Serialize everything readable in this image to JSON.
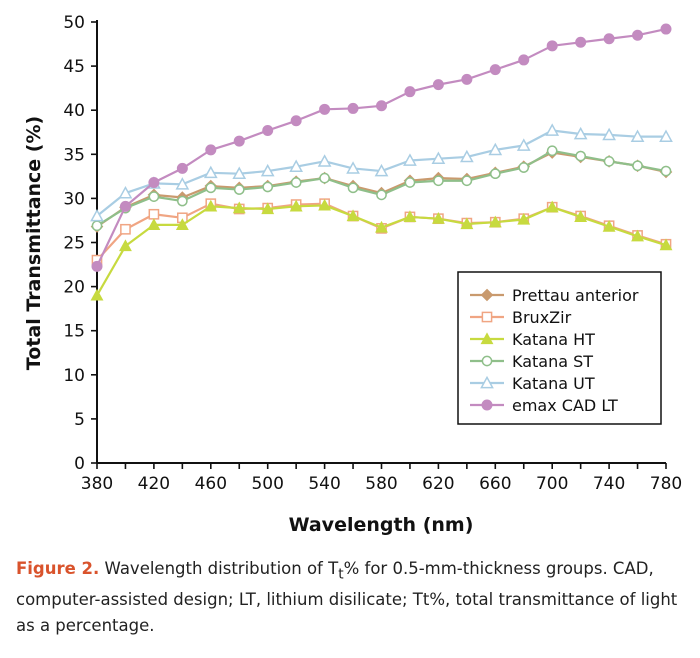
{
  "chart_data": {
    "type": "line",
    "title": "",
    "xlabel": "Wavelength (nm)",
    "ylabel": "Total Transmittance (%)",
    "xlim": [
      380,
      780
    ],
    "ylim": [
      0,
      50
    ],
    "x": [
      380,
      400,
      420,
      440,
      460,
      480,
      500,
      520,
      540,
      560,
      580,
      600,
      620,
      640,
      660,
      680,
      700,
      720,
      740,
      760,
      780
    ],
    "xticks": [
      380,
      420,
      460,
      500,
      540,
      580,
      620,
      660,
      700,
      740,
      780
    ],
    "yticks": [
      0,
      5,
      10,
      15,
      20,
      25,
      30,
      35,
      40,
      45,
      50
    ],
    "legend_position": "lower-right",
    "grid": false,
    "series": [
      {
        "name": "Prettau anterior",
        "color": "#c99a6e",
        "marker": "diamond",
        "values": [
          26.8,
          29.0,
          30.4,
          30.1,
          31.4,
          31.2,
          31.4,
          31.9,
          32.3,
          31.4,
          30.6,
          32.0,
          32.3,
          32.2,
          32.9,
          33.6,
          35.2,
          34.7,
          34.2,
          33.7,
          33.0
        ]
      },
      {
        "name": "BruxZir",
        "color": "#f0a583",
        "marker": "square",
        "values": [
          23.0,
          26.5,
          28.2,
          27.8,
          29.4,
          28.8,
          28.9,
          29.3,
          29.4,
          28.0,
          26.6,
          27.9,
          27.7,
          27.2,
          27.3,
          27.7,
          29.0,
          28.0,
          26.9,
          25.8,
          24.8
        ]
      },
      {
        "name": "Katana HT",
        "color": "#c7da3f",
        "marker": "triangle",
        "values": [
          19.0,
          24.6,
          27.0,
          27.0,
          29.1,
          28.9,
          28.8,
          29.1,
          29.2,
          28.0,
          26.7,
          27.9,
          27.7,
          27.1,
          27.3,
          27.6,
          29.0,
          27.9,
          26.8,
          25.7,
          24.7
        ]
      },
      {
        "name": "Katana ST",
        "color": "#8fbf8a",
        "marker": "circle-open",
        "values": [
          26.9,
          28.9,
          30.2,
          29.7,
          31.2,
          31.0,
          31.3,
          31.8,
          32.3,
          31.2,
          30.4,
          31.8,
          32.0,
          32.0,
          32.8,
          33.5,
          35.4,
          34.8,
          34.2,
          33.7,
          33.1
        ]
      },
      {
        "name": "Katana UT",
        "color": "#a9cde3",
        "marker": "triangle-open",
        "values": [
          28.0,
          30.6,
          31.7,
          31.6,
          32.9,
          32.8,
          33.1,
          33.6,
          34.2,
          33.4,
          33.1,
          34.3,
          34.5,
          34.7,
          35.5,
          36.0,
          37.7,
          37.3,
          37.2,
          37.0,
          37.0
        ]
      },
      {
        "name": "emax CAD LT",
        "color": "#c38bc0",
        "marker": "circle",
        "values": [
          22.3,
          29.1,
          31.8,
          33.4,
          35.5,
          36.5,
          37.7,
          38.8,
          40.1,
          40.2,
          40.5,
          42.1,
          42.9,
          43.5,
          44.6,
          45.7,
          47.3,
          47.7,
          48.1,
          48.5,
          49.2
        ]
      }
    ]
  },
  "caption": {
    "label": "Figure 2.",
    "text_main": " Wavelength distribution of T",
    "subscript": "t",
    "text_rest": "% for 0.5-mm-thickness groups. CAD, computer-assisted design; LT, lithium disilicate; Tt%, total transmittance of light as a percentage."
  }
}
